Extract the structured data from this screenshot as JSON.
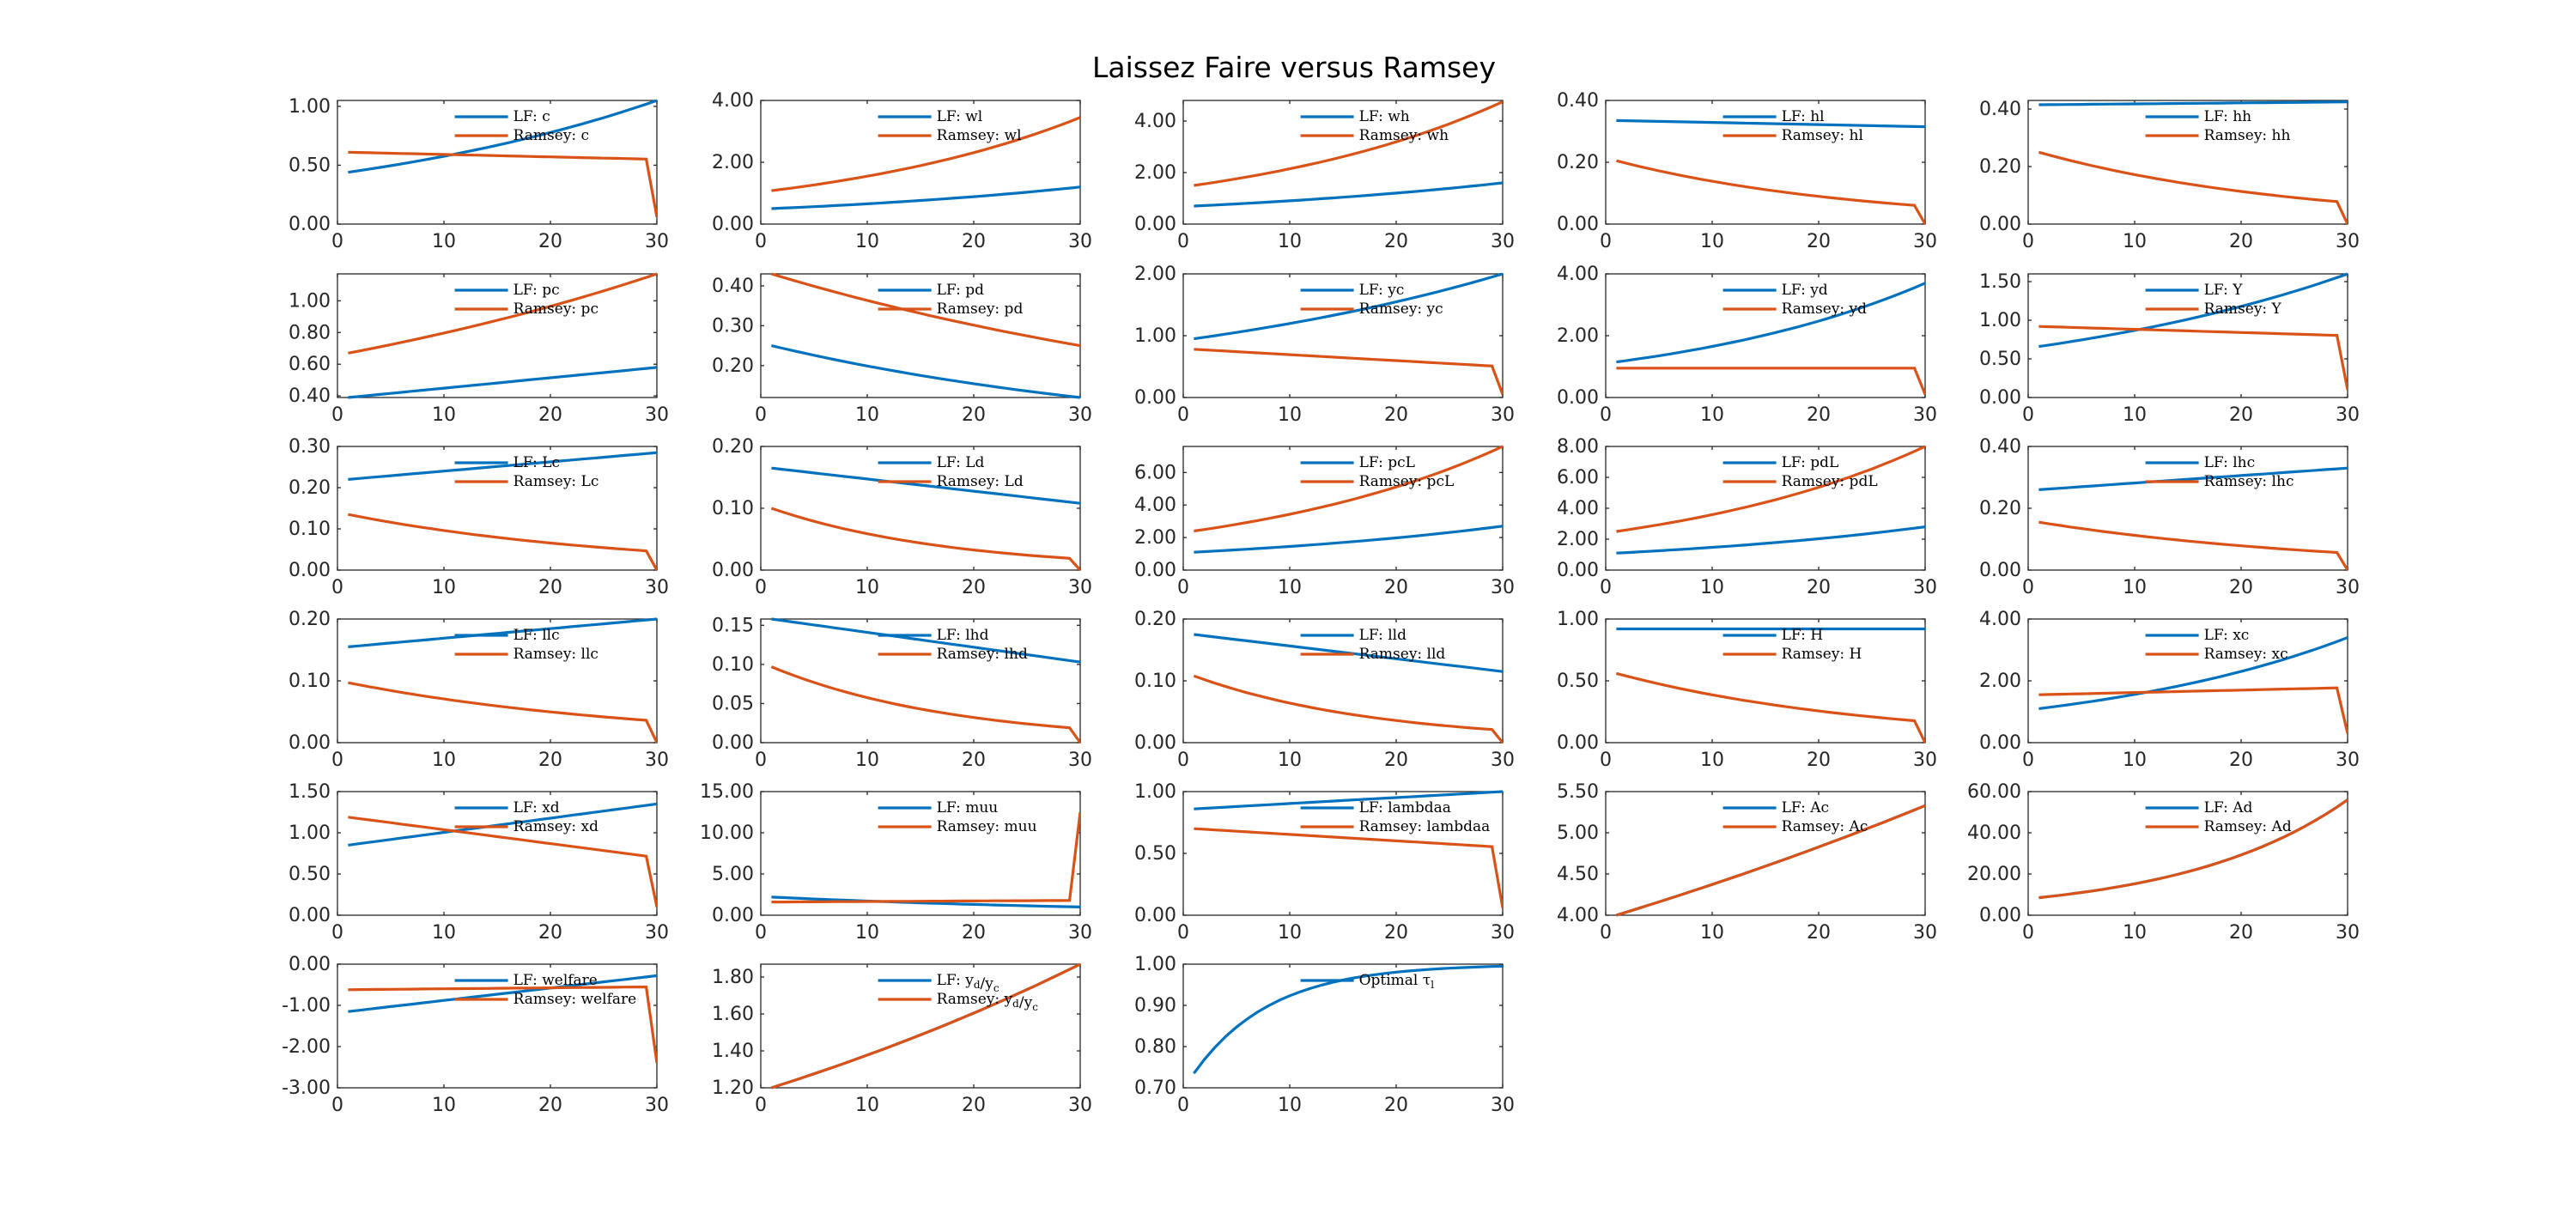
{
  "title": "Laissez Faire versus Ramsey",
  "colors": {
    "lf": "#0072BD",
    "ramsey": "#D95319"
  },
  "chart_data": [
    {
      "type": "line",
      "yticks": [
        "0.00",
        "0.50",
        "1.00"
      ],
      "ylim": [
        0,
        1.05
      ],
      "xticks": [
        "0",
        "10",
        "20",
        "30"
      ],
      "series": [
        {
          "name": "LF: c",
          "kind": "exp",
          "start": 0.44,
          "end": 1.05,
          "color": "lf"
        },
        {
          "name": "Ramsey: c",
          "kind": "lin",
          "start": 0.61,
          "end": 0.55,
          "drop": 0.06,
          "color": "ramsey"
        }
      ]
    },
    {
      "type": "line",
      "yticks": [
        "0.00",
        "2.00",
        "4.00"
      ],
      "ylim": [
        0,
        4
      ],
      "xticks": [
        "0",
        "10",
        "20",
        "30"
      ],
      "series": [
        {
          "name": "LF: wl",
          "kind": "exp",
          "start": 0.5,
          "end": 1.2,
          "color": "lf"
        },
        {
          "name": "Ramsey: wl",
          "kind": "exp",
          "start": 1.08,
          "end": 3.45,
          "color": "ramsey"
        }
      ]
    },
    {
      "type": "line",
      "yticks": [
        "0.00",
        "2.00",
        "4.00"
      ],
      "ylim": [
        0,
        4.8
      ],
      "xticks": [
        "0",
        "10",
        "20",
        "30"
      ],
      "series": [
        {
          "name": "LF: wh",
          "kind": "exp",
          "start": 0.7,
          "end": 1.6,
          "color": "lf"
        },
        {
          "name": "Ramsey: wh",
          "kind": "exp",
          "start": 1.5,
          "end": 4.75,
          "color": "ramsey"
        }
      ]
    },
    {
      "type": "line",
      "yticks": [
        "0.00",
        "0.20",
        "0.40"
      ],
      "ylim": [
        0,
        0.4
      ],
      "xticks": [
        "0",
        "10",
        "20",
        "30"
      ],
      "series": [
        {
          "name": "LF: hl",
          "kind": "lin",
          "start": 0.335,
          "end": 0.315,
          "color": "lf"
        },
        {
          "name": "Ramsey: hl",
          "kind": "exp",
          "start": 0.205,
          "end": 0.058,
          "drop": 0.0,
          "color": "ramsey"
        }
      ]
    },
    {
      "type": "line",
      "yticks": [
        "0.00",
        "0.20",
        "0.40"
      ],
      "ylim": [
        0,
        0.43
      ],
      "xticks": [
        "0",
        "10",
        "20",
        "30"
      ],
      "series": [
        {
          "name": "LF: hh",
          "kind": "lin",
          "start": 0.415,
          "end": 0.425,
          "color": "lf"
        },
        {
          "name": "Ramsey: hh",
          "kind": "exp",
          "start": 0.25,
          "end": 0.075,
          "drop": 0.0,
          "color": "ramsey"
        }
      ]
    },
    {
      "type": "line",
      "yticks": [
        "0.40",
        "0.60",
        "0.80",
        "1.00"
      ],
      "ylim": [
        0.39,
        1.17
      ],
      "xticks": [
        "0",
        "10",
        "20",
        "30"
      ],
      "series": [
        {
          "name": "LF: pc",
          "kind": "lin",
          "start": 0.39,
          "end": 0.58,
          "color": "lf"
        },
        {
          "name": "Ramsey: pc",
          "kind": "exp",
          "start": 0.67,
          "end": 1.17,
          "color": "ramsey"
        }
      ]
    },
    {
      "type": "line",
      "yticks": [
        "0.20",
        "0.30",
        "0.40"
      ],
      "ylim": [
        0.12,
        0.43
      ],
      "xticks": [
        "0",
        "10",
        "20",
        "30"
      ],
      "series": [
        {
          "name": "LF: pd",
          "kind": "exp",
          "start": 0.25,
          "end": 0.12,
          "color": "lf"
        },
        {
          "name": "Ramsey: pd",
          "kind": "exp",
          "start": 0.43,
          "end": 0.25,
          "color": "ramsey"
        }
      ]
    },
    {
      "type": "line",
      "yticks": [
        "0.00",
        "1.00",
        "2.00"
      ],
      "ylim": [
        0,
        2
      ],
      "xticks": [
        "0",
        "10",
        "20",
        "30"
      ],
      "series": [
        {
          "name": "LF: yc",
          "kind": "exp",
          "start": 0.95,
          "end": 2.0,
          "color": "lf"
        },
        {
          "name": "Ramsey: yc",
          "kind": "lin",
          "start": 0.78,
          "end": 0.5,
          "drop": 0.05,
          "color": "ramsey"
        }
      ]
    },
    {
      "type": "line",
      "yticks": [
        "0.00",
        "2.00",
        "4.00"
      ],
      "ylim": [
        0,
        4
      ],
      "xticks": [
        "0",
        "10",
        "20",
        "30"
      ],
      "series": [
        {
          "name": "LF: yd",
          "kind": "exp",
          "start": 1.15,
          "end": 3.7,
          "color": "lf"
        },
        {
          "name": "Ramsey: yd",
          "kind": "lin",
          "start": 0.95,
          "end": 0.95,
          "drop": 0.1,
          "color": "ramsey"
        }
      ]
    },
    {
      "type": "line",
      "yticks": [
        "0.00",
        "0.50",
        "1.00",
        "1.50"
      ],
      "ylim": [
        0,
        1.6
      ],
      "xticks": [
        "0",
        "10",
        "20",
        "30"
      ],
      "series": [
        {
          "name": "LF: Y",
          "kind": "exp",
          "start": 0.66,
          "end": 1.6,
          "color": "lf"
        },
        {
          "name": "Ramsey: Y",
          "kind": "lin",
          "start": 0.92,
          "end": 0.8,
          "drop": 0.1,
          "color": "ramsey"
        }
      ]
    },
    {
      "type": "line",
      "yticks": [
        "0.00",
        "0.10",
        "0.20",
        "0.30"
      ],
      "ylim": [
        0,
        0.3
      ],
      "xticks": [
        "0",
        "10",
        "20",
        "30"
      ],
      "series": [
        {
          "name": "LF: Lc",
          "kind": "lin",
          "start": 0.22,
          "end": 0.285,
          "color": "lf"
        },
        {
          "name": "Ramsey: Lc",
          "kind": "exp",
          "start": 0.135,
          "end": 0.045,
          "drop": 0.0,
          "color": "ramsey"
        }
      ]
    },
    {
      "type": "line",
      "yticks": [
        "0.00",
        "0.10",
        "0.20"
      ],
      "ylim": [
        0,
        0.2
      ],
      "xticks": [
        "0",
        "10",
        "20",
        "30"
      ],
      "series": [
        {
          "name": "LF: Ld",
          "kind": "lin",
          "start": 0.165,
          "end": 0.108,
          "color": "lf"
        },
        {
          "name": "Ramsey: Ld",
          "kind": "exp",
          "start": 0.1,
          "end": 0.018,
          "drop": 0.0,
          "color": "ramsey"
        }
      ]
    },
    {
      "type": "line",
      "yticks": [
        "0.00",
        "2.00",
        "4.00",
        "6.00"
      ],
      "ylim": [
        0,
        7.6
      ],
      "xticks": [
        "0",
        "10",
        "20",
        "30"
      ],
      "series": [
        {
          "name": "LF: pcL",
          "kind": "exp",
          "start": 1.1,
          "end": 2.7,
          "color": "lf"
        },
        {
          "name": "Ramsey: pcL",
          "kind": "exp",
          "start": 2.4,
          "end": 7.6,
          "color": "ramsey"
        }
      ]
    },
    {
      "type": "line",
      "yticks": [
        "0.00",
        "2.00",
        "4.00",
        "6.00",
        "8.00"
      ],
      "ylim": [
        0,
        8
      ],
      "xticks": [
        "0",
        "10",
        "20",
        "30"
      ],
      "series": [
        {
          "name": "LF: pdL",
          "kind": "exp",
          "start": 1.1,
          "end": 2.8,
          "color": "lf"
        },
        {
          "name": "Ramsey: pdL",
          "kind": "exp",
          "start": 2.5,
          "end": 8.0,
          "color": "ramsey"
        }
      ]
    },
    {
      "type": "line",
      "yticks": [
        "0.00",
        "0.20",
        "0.40"
      ],
      "ylim": [
        0,
        0.4
      ],
      "xticks": [
        "0",
        "10",
        "20",
        "30"
      ],
      "series": [
        {
          "name": "LF: lhc",
          "kind": "lin",
          "start": 0.26,
          "end": 0.33,
          "color": "lf"
        },
        {
          "name": "Ramsey: lhc",
          "kind": "exp",
          "start": 0.155,
          "end": 0.055,
          "drop": 0.0,
          "color": "ramsey"
        }
      ]
    },
    {
      "type": "line",
      "yticks": [
        "0.00",
        "0.10",
        "0.20"
      ],
      "ylim": [
        0,
        0.2
      ],
      "xticks": [
        "0",
        "10",
        "20",
        "30"
      ],
      "series": [
        {
          "name": "LF: llc",
          "kind": "lin",
          "start": 0.155,
          "end": 0.2,
          "color": "lf"
        },
        {
          "name": "Ramsey: llc",
          "kind": "exp",
          "start": 0.097,
          "end": 0.035,
          "drop": 0.0,
          "color": "ramsey"
        }
      ]
    },
    {
      "type": "line",
      "yticks": [
        "0.00",
        "0.05",
        "0.10",
        "0.15"
      ],
      "ylim": [
        0,
        0.158
      ],
      "xticks": [
        "0",
        "10",
        "20",
        "30"
      ],
      "series": [
        {
          "name": "LF: lhd",
          "kind": "lin",
          "start": 0.158,
          "end": 0.103,
          "color": "lf"
        },
        {
          "name": "Ramsey: lhd",
          "kind": "exp",
          "start": 0.097,
          "end": 0.018,
          "drop": 0.0,
          "color": "ramsey"
        }
      ]
    },
    {
      "type": "line",
      "yticks": [
        "0.00",
        "0.10",
        "0.20"
      ],
      "ylim": [
        0,
        0.2
      ],
      "xticks": [
        "0",
        "10",
        "20",
        "30"
      ],
      "series": [
        {
          "name": "LF: lld",
          "kind": "lin",
          "start": 0.175,
          "end": 0.115,
          "color": "lf"
        },
        {
          "name": "Ramsey: lld",
          "kind": "exp",
          "start": 0.108,
          "end": 0.02,
          "drop": 0.0,
          "color": "ramsey"
        }
      ]
    },
    {
      "type": "line",
      "yticks": [
        "0.00",
        "0.50",
        "1.00"
      ],
      "ylim": [
        0,
        1
      ],
      "xticks": [
        "0",
        "10",
        "20",
        "30"
      ],
      "series": [
        {
          "name": "LF: H",
          "kind": "lin",
          "start": 0.92,
          "end": 0.92,
          "color": "lf"
        },
        {
          "name": "Ramsey: H",
          "kind": "exp",
          "start": 0.56,
          "end": 0.17,
          "drop": 0.0,
          "color": "ramsey"
        }
      ]
    },
    {
      "type": "line",
      "yticks": [
        "0.00",
        "2.00",
        "4.00"
      ],
      "ylim": [
        0,
        4
      ],
      "xticks": [
        "0",
        "10",
        "20",
        "30"
      ],
      "series": [
        {
          "name": "LF: xc",
          "kind": "exp",
          "start": 1.1,
          "end": 3.4,
          "color": "lf"
        },
        {
          "name": "Ramsey: xc",
          "kind": "lin",
          "start": 1.55,
          "end": 1.78,
          "drop": 0.3,
          "color": "ramsey"
        }
      ]
    },
    {
      "type": "line",
      "yticks": [
        "0.00",
        "0.50",
        "1.00",
        "1.50"
      ],
      "ylim": [
        0,
        1.5
      ],
      "xticks": [
        "0",
        "10",
        "20",
        "30"
      ],
      "series": [
        {
          "name": "LF: xd",
          "kind": "lin",
          "start": 0.85,
          "end": 1.35,
          "color": "lf"
        },
        {
          "name": "Ramsey: xd",
          "kind": "lin",
          "start": 1.19,
          "end": 0.7,
          "drop": 0.1,
          "color": "ramsey"
        }
      ]
    },
    {
      "type": "line",
      "yticks": [
        "0.00",
        "5.00",
        "10.00",
        "15.00"
      ],
      "ylim": [
        0,
        15
      ],
      "xticks": [
        "0",
        "10",
        "20",
        "30"
      ],
      "series": [
        {
          "name": "LF: muu",
          "kind": "exp",
          "start": 2.2,
          "end": 1.0,
          "color": "lf"
        },
        {
          "name": "Ramsey: muu",
          "kind": "lin",
          "start": 1.6,
          "end": 1.8,
          "jump": 12.5,
          "color": "ramsey"
        }
      ]
    },
    {
      "type": "line",
      "yticks": [
        "0.00",
        "0.50",
        "1.00"
      ],
      "ylim": [
        0,
        1
      ],
      "xticks": [
        "0",
        "10",
        "20",
        "30"
      ],
      "series": [
        {
          "name": "LF: lambdaa",
          "kind": "lin",
          "start": 0.86,
          "end": 1.0,
          "color": "lf"
        },
        {
          "name": "Ramsey: lambdaa",
          "kind": "lin",
          "start": 0.7,
          "end": 0.55,
          "drop": 0.06,
          "color": "ramsey"
        }
      ]
    },
    {
      "type": "line",
      "yticks": [
        "4.00",
        "4.50",
        "5.00",
        "5.50"
      ],
      "ylim": [
        4,
        5.5
      ],
      "xticks": [
        "0",
        "10",
        "20",
        "30"
      ],
      "series": [
        {
          "name": "LF: Ac",
          "kind": "exp",
          "start": 4.0,
          "end": 5.33,
          "color": "lf"
        },
        {
          "name": "Ramsey: Ac",
          "kind": "exp",
          "start": 4.0,
          "end": 5.33,
          "color": "ramsey"
        }
      ]
    },
    {
      "type": "line",
      "yticks": [
        "0.00",
        "20.00",
        "40.00",
        "60.00"
      ],
      "ylim": [
        0,
        60
      ],
      "xticks": [
        "0",
        "10",
        "20",
        "30"
      ],
      "series": [
        {
          "name": "LF: Ad",
          "kind": "exp",
          "start": 8.5,
          "end": 56,
          "color": "lf"
        },
        {
          "name": "Ramsey: Ad",
          "kind": "exp",
          "start": 8.5,
          "end": 56,
          "color": "ramsey"
        }
      ]
    },
    {
      "type": "line",
      "yticks": [
        "-3.00",
        "-2.00",
        "-1.00",
        "0.00"
      ],
      "ylim": [
        -3,
        0
      ],
      "xticks": [
        "0",
        "10",
        "20",
        "30"
      ],
      "series": [
        {
          "name": "LF: welfare",
          "kind": "lin",
          "start": -1.15,
          "end": -0.28,
          "color": "lf"
        },
        {
          "name": "Ramsey: welfare",
          "kind": "lin",
          "start": -0.62,
          "end": -0.55,
          "drop": -2.4,
          "color": "ramsey"
        }
      ]
    },
    {
      "type": "line",
      "yticks": [
        "1.20",
        "1.40",
        "1.60",
        "1.80"
      ],
      "ylim": [
        1.2,
        1.87
      ],
      "xticks": [
        "0",
        "10",
        "20",
        "30"
      ],
      "series": [
        {
          "name": "LF: y_d/y_c",
          "kind": "exp",
          "start": 1.2,
          "end": 1.87,
          "color": "lf"
        },
        {
          "name": "Ramsey: y_d/y_c",
          "kind": "exp",
          "start": 1.2,
          "end": 1.87,
          "color": "ramsey"
        }
      ]
    },
    {
      "type": "line",
      "yticks": [
        "0.70",
        "0.80",
        "0.90",
        "1.00"
      ],
      "ylim": [
        0.7,
        1
      ],
      "xticks": [
        "0",
        "10",
        "20",
        "30"
      ],
      "series": [
        {
          "name": "Optimal τ_l",
          "kind": "conc",
          "start": 0.735,
          "end": 0.995,
          "color": "lf"
        }
      ]
    }
  ]
}
